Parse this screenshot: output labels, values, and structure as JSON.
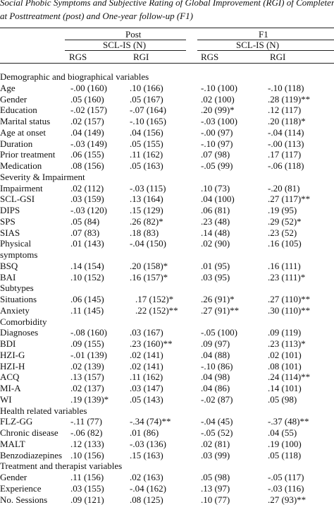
{
  "caption": {
    "line1": "Social Phobic Symptoms and Subjective Rating of Global Improvement (RGI) of Completers",
    "line2": "at Posttreatment (post) and One-year follow-up (F1)"
  },
  "header": {
    "group_post": "Post",
    "group_f1": "F1",
    "scl_post": "SCL-IS (N)",
    "scl_f1": "SCL-IS (N)",
    "col_rgs_post": "RGS",
    "col_rgi_post": "RGI",
    "col_rgs_f1": "RGS",
    "col_rgi_f1": "RGI"
  },
  "rows": [
    {
      "type": "section",
      "label": "Demographic and biographical variables"
    },
    {
      "label": "Age",
      "v": [
        "-.00 (160)",
        ".10 (166)",
        "-.10 (100)",
        "-.10 (118)"
      ]
    },
    {
      "label": "Gender",
      "v": [
        ".05 (160)",
        ".05 (167)",
        ".02 (100)",
        ".28 (119)**"
      ]
    },
    {
      "label": "Education",
      "v": [
        "-.02 (157)",
        "-.07 (164)",
        ".20 (99)*",
        ".12 (117)"
      ]
    },
    {
      "label": "Marital status",
      "v": [
        ".02 (157)",
        "-.10 (165)",
        "-.03 (100)",
        ".20 (118)*"
      ]
    },
    {
      "label": "Age at onset",
      "v": [
        ".04 (149)",
        ".04 (156)",
        "-.00 (97)",
        "-.04 (114)"
      ]
    },
    {
      "label": "Duration",
      "v": [
        "-.03 (149)",
        ".05 (155)",
        "-.10 (97)",
        "-.00 (113)"
      ]
    },
    {
      "label": "Prior treatment",
      "v": [
        ".06 (155)",
        ".11 (162)",
        ".07 (98)",
        ".17 (117)"
      ]
    },
    {
      "label": "Medication",
      "v": [
        ".08 (156)",
        ".05 (163)",
        "-.05 (99)",
        "-.06 (118)"
      ]
    },
    {
      "type": "section",
      "label": "Severity & Impairment"
    },
    {
      "label": "Impairment",
      "v": [
        ".02 (112)",
        "-.03 (115)",
        ".10 (73)",
        "-.20 (81)"
      ]
    },
    {
      "label": "SCL-GSI",
      "v": [
        ".03 (159)",
        ".13 (164)",
        ".04 (100)",
        ".27 (117)**"
      ]
    },
    {
      "label": "DIPS",
      "v": [
        "-.03 (120)",
        ".15 (129)",
        ".06 (81)",
        ".19 (95)"
      ]
    },
    {
      "label": "SPS",
      "v": [
        ".05 (84)",
        ".26 (82)*",
        ".23 (48)",
        ".29 (52)*"
      ]
    },
    {
      "label": "SIAS",
      "v": [
        ".07 (83)",
        ".18 (83)",
        ".14 (48)",
        ".23 (52)"
      ]
    },
    {
      "label": "Physical",
      "v": [
        ".01 (143)",
        "-.04 (150)",
        ".02 (90)",
        ".16 (105)"
      ]
    },
    {
      "type": "section",
      "label": "symptoms"
    },
    {
      "label": "BSQ",
      "v": [
        ".14 (154)",
        ".20 (158)*",
        ".01 (95)",
        ".16 (111)"
      ]
    },
    {
      "label": "BAI",
      "v": [
        ".10 (152)",
        ".16 (157)*",
        ".03 (95)",
        ".23 (111)*"
      ]
    },
    {
      "type": "section",
      "label": "Subtypes"
    },
    {
      "label": "Situations",
      "v": [
        ".06 (145)",
        ".17 (152)*",
        ".26 (91)*",
        ".27 (110)**"
      ],
      "off": true
    },
    {
      "label": "Anxiety",
      "v": [
        ".11 (145)",
        ".22 (152)**",
        ".27 (91)**",
        ".30 (110)**"
      ],
      "off": true
    },
    {
      "type": "section",
      "label": "Comorbidity"
    },
    {
      "label": "Diagnoses",
      "v": [
        "-.08 (160)",
        ".03 (167)",
        "-.05 (100)",
        ".09 (119)"
      ]
    },
    {
      "label": "BDI",
      "v": [
        ".09 (155)",
        ".23 (160)**",
        ".09 (97)",
        ".23 (113)*"
      ]
    },
    {
      "label": "HZI-G",
      "v": [
        "-.01 (139)",
        ".02 (141)",
        ".04 (88)",
        ".02 (101)"
      ]
    },
    {
      "label": "HZI-H",
      "v": [
        ".02 (139)",
        ".02 (141)",
        "-.10 (86)",
        ".08 (101)"
      ]
    },
    {
      "label": "ACQ",
      "v": [
        ".13 (157)",
        ".11 (162)",
        ".04 (98)",
        ".24 (114)**"
      ]
    },
    {
      "label": "MI-A",
      "v": [
        ".02 (137)",
        ".03 (147)",
        ".04 (86)",
        ".14 (101)"
      ]
    },
    {
      "label": "WI",
      "v": [
        ".19 (139)*",
        ".05 (143)",
        "-.02 (87)",
        ".05 (98)"
      ]
    },
    {
      "type": "section",
      "label": "Health related variables"
    },
    {
      "label": "FLZ-GG",
      "v": [
        "-.11 (77)",
        "-.34 (74)**",
        "-.04 (45)",
        "-.37 (48)**"
      ]
    },
    {
      "label": "Chronic disease",
      "v": [
        "-.06 (82)",
        ".01 (86)",
        "-.05 (52)",
        ".04 (55)"
      ]
    },
    {
      "label": "MALT",
      "v": [
        ".12 (133)",
        "-.03 (136)",
        ".02 (81)",
        ".19 (100)"
      ]
    },
    {
      "label": "Benzodiazepines",
      "v": [
        ".10 (156)",
        ".15 (163)",
        ".03 (99)",
        ".05 (118)"
      ]
    },
    {
      "type": "section",
      "label": "Treatment and therapist variables"
    },
    {
      "label": "Gender",
      "v": [
        ".11 (156)",
        ".02 (163)",
        ".05 (98)",
        "-.05 (117)"
      ]
    },
    {
      "label": "Experience",
      "v": [
        ".03 (155)",
        "-.04 (162)",
        ".13 (97)",
        "-.03 (116)"
      ]
    },
    {
      "label": "No. Sessions",
      "v": [
        ".09 (121)",
        ".08 (125)",
        ".10 (77)",
        ".27 (93)**"
      ]
    }
  ]
}
